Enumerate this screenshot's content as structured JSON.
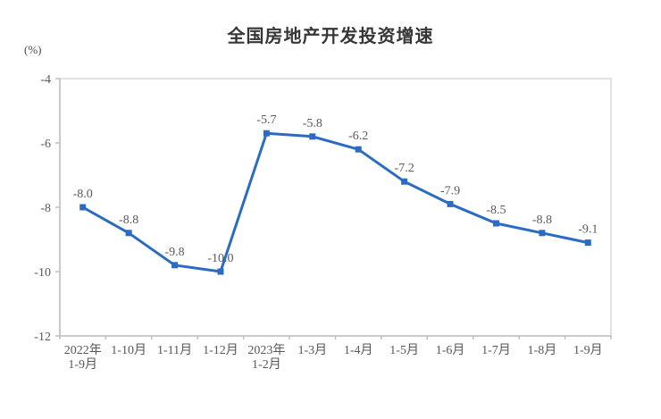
{
  "chart_data": {
    "type": "line",
    "title": "全国房地产开发投资增速",
    "unit_label": "(%)",
    "categories": [
      [
        "2022年",
        "1-9月"
      ],
      [
        "1-10月"
      ],
      [
        "1-11月"
      ],
      [
        "1-12月"
      ],
      [
        "2023年",
        "1-2月"
      ],
      [
        "1-3月"
      ],
      [
        "1-4月"
      ],
      [
        "1-5月"
      ],
      [
        "1-6月"
      ],
      [
        "1-7月"
      ],
      [
        "1-8月"
      ],
      [
        "1-9月"
      ]
    ],
    "values": [
      -8.0,
      -8.8,
      -9.8,
      -10.0,
      -5.7,
      -5.8,
      -6.2,
      -7.2,
      -7.9,
      -8.5,
      -8.8,
      -9.1
    ],
    "data_labels": [
      "-8.0",
      "-8.8",
      "-9.8",
      "-10.0",
      "-5.7",
      "-5.8",
      "-6.2",
      "-7.2",
      "-7.9",
      "-8.5",
      "-8.8",
      "-9.1"
    ],
    "xlabel": "",
    "ylabel": "(%)",
    "ylim": [
      -12,
      -4
    ],
    "yticks": [
      -4,
      -6,
      -8,
      -10,
      -12
    ],
    "ytick_labels": [
      "-4",
      "-6",
      "-8",
      "-10",
      "-12"
    ],
    "grid": false,
    "legend": "none",
    "marker": "square",
    "colors": {
      "line": "#2B6BC3",
      "marker": "#2B6BC3",
      "axis": "#BFBFBF",
      "frame": "#D9D9D9",
      "tick_text": "#595959",
      "data_label_text": "#595959"
    }
  }
}
